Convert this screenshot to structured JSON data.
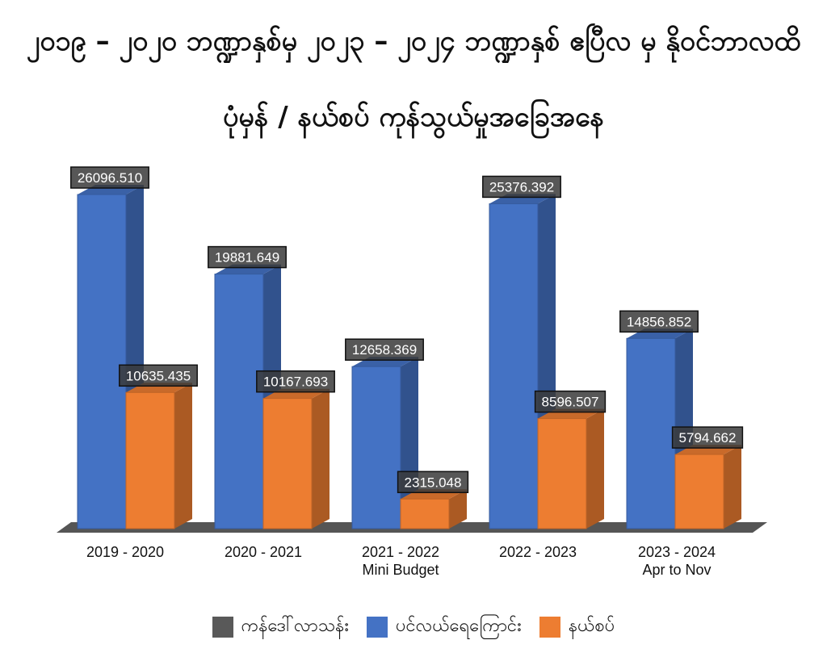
{
  "title_line1": "၂၀၁၉ – ၂၀၂၀ ဘဏ္ဍာနှစ်မှ ၂၀၂၃ – ၂၀၂၄ ဘဏ္ဍာနှစ် ဧပြီလ မှ နိုဝင်ဘာလထိ",
  "title_line2": "ပုံမှန် / နယ်စပ် ကုန်သွယ်မှုအခြေအနေ",
  "chart_data": {
    "type": "bar",
    "title": "",
    "xlabel": "",
    "ylabel": "",
    "ylim": [
      0,
      27000
    ],
    "grid": false,
    "legend_position": "bottom",
    "categories": [
      [
        "2019 - 2020"
      ],
      [
        "2020 - 2021"
      ],
      [
        "2021 - 2022",
        "Mini Budget"
      ],
      [
        "2022 - 2023"
      ],
      [
        "2023 - 2024",
        "Apr to Nov"
      ]
    ],
    "series": [
      {
        "name": "ပင်လယ်ရေကြောင်း",
        "color": "#4472C4",
        "values": [
          26096.51,
          19881.649,
          12658.369,
          25376.392,
          14856.852
        ]
      },
      {
        "name": "နယ်စပ်",
        "color": "#ED7D31",
        "values": [
          10635.435,
          10167.693,
          2315.048,
          8596.507,
          5794.662
        ]
      }
    ],
    "data_labels": [
      [
        "26096.510",
        "19881.649",
        "12658.369",
        "25376.392",
        "14856.852"
      ],
      [
        "10635.435",
        "10167.693",
        "2315.048",
        "8596.507",
        "5794.662"
      ]
    ]
  },
  "legend": [
    {
      "name": "ကန်ဒေါ်လာသန်း",
      "color": "#595959"
    },
    {
      "name": "ပင်လယ်ရေကြောင်း",
      "color": "#4472C4"
    },
    {
      "name": "နယ်စပ်",
      "color": "#ED7D31"
    }
  ]
}
